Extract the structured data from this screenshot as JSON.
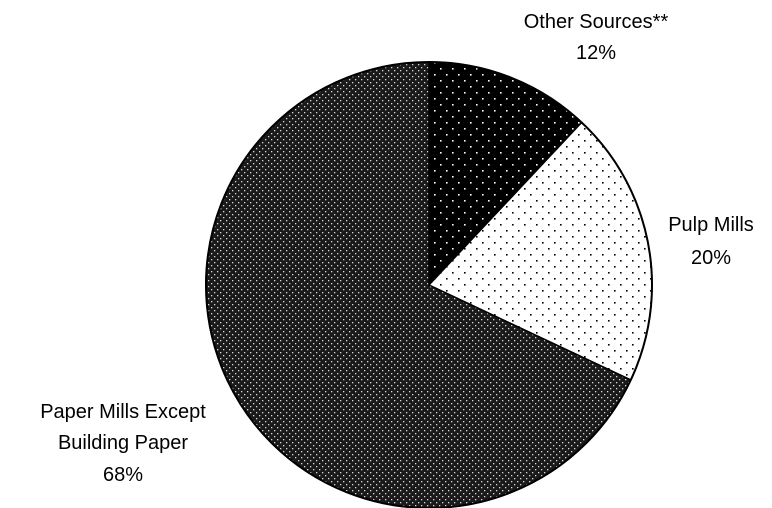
{
  "chart_data": {
    "type": "pie",
    "title": "",
    "start_angle_deg": 0,
    "direction": "clockwise",
    "slices": [
      {
        "label": "Other Sources**",
        "pct_label": "12%",
        "value": 12,
        "fill": "#000000",
        "dot_color": "#ffffff",
        "pattern": "sparse-light-dots-on-black"
      },
      {
        "label": "Pulp Mills",
        "pct_label": "20%",
        "value": 20,
        "fill": "#ffffff",
        "dot_color": "#000000",
        "pattern": "sparse-dark-dots-on-white"
      },
      {
        "label": "Paper Mills Except Building Paper",
        "label_lines": [
          "Paper Mills Except",
          "Building Paper"
        ],
        "pct_label": "68%",
        "value": 68,
        "fill": "#000000",
        "dot_color": "#ffffff",
        "pattern": "dense-light-dots-on-black"
      }
    ]
  }
}
